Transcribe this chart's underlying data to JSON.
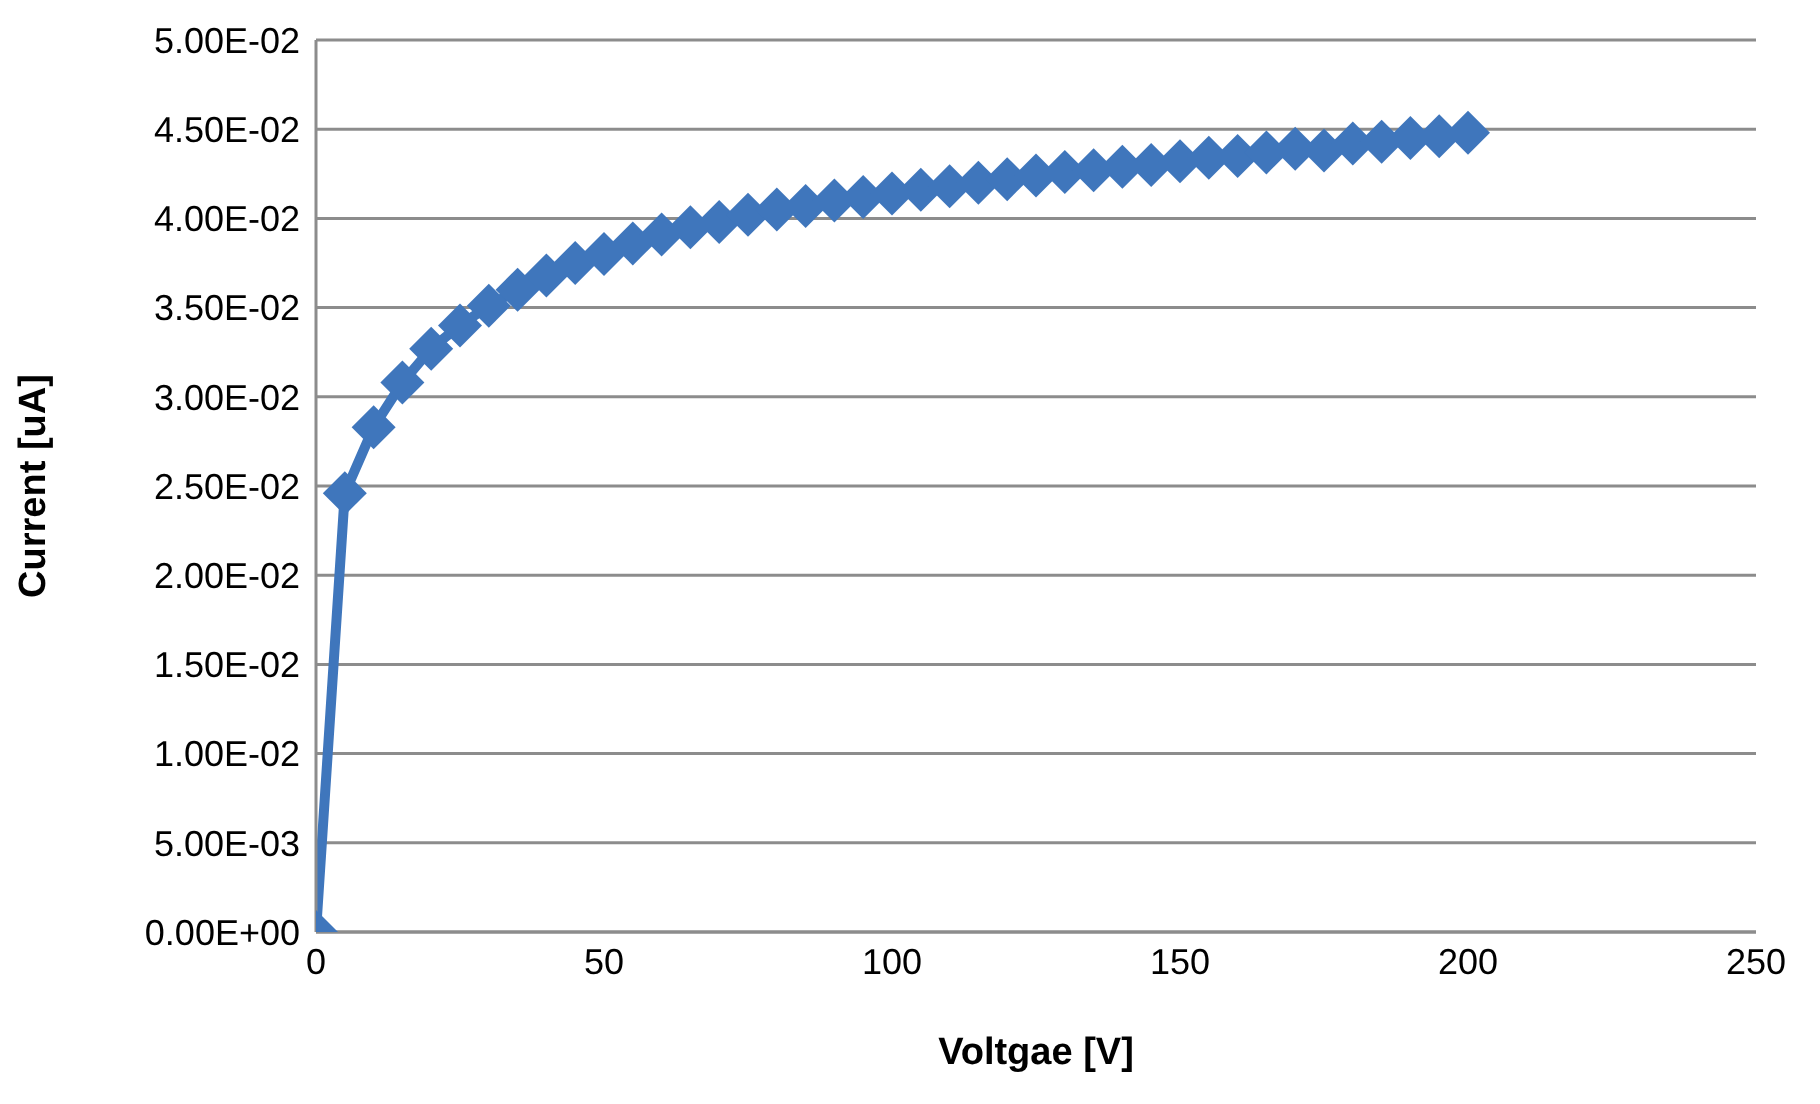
{
  "chart_data": {
    "type": "line",
    "xlabel": "Voltgae [V]",
    "ylabel": "Current [uA]",
    "x": [
      0,
      5,
      10,
      15,
      20,
      25,
      30,
      35,
      40,
      45,
      50,
      55,
      60,
      65,
      70,
      75,
      80,
      85,
      90,
      95,
      100,
      105,
      110,
      115,
      120,
      125,
      130,
      135,
      140,
      145,
      150,
      155,
      160,
      165,
      170,
      175,
      180,
      185,
      190,
      195,
      200
    ],
    "series": [
      {
        "color": "#3f76bc",
        "values": [
          0,
          0.0246,
          0.0283,
          0.0308,
          0.0327,
          0.034,
          0.0351,
          0.036,
          0.0368,
          0.0375,
          0.038,
          0.0386,
          0.0391,
          0.0395,
          0.0398,
          0.0402,
          0.0405,
          0.0407,
          0.041,
          0.0412,
          0.0414,
          0.0416,
          0.0418,
          0.042,
          0.0422,
          0.0424,
          0.0426,
          0.0427,
          0.0429,
          0.043,
          0.0432,
          0.0434,
          0.0435,
          0.0437,
          0.0439,
          0.0438,
          0.0442,
          0.0443,
          0.0445,
          0.0446,
          0.0448
        ]
      }
    ],
    "xlim": [
      0,
      250
    ],
    "xticks": [
      0,
      50,
      100,
      150,
      200,
      250
    ],
    "ylim": [
      0,
      0.05
    ],
    "yticks": [
      {
        "value": 0,
        "label": "0.00E+00"
      },
      {
        "value": 0.005,
        "label": "5.00E-03"
      },
      {
        "value": 0.01,
        "label": "1.00E-02"
      },
      {
        "value": 0.015,
        "label": "1.50E-02"
      },
      {
        "value": 0.02,
        "label": "2.00E-02"
      },
      {
        "value": 0.025,
        "label": "2.50E-02"
      },
      {
        "value": 0.03,
        "label": "3.00E-02"
      },
      {
        "value": 0.035,
        "label": "3.50E-02"
      },
      {
        "value": 0.04,
        "label": "4.00E-02"
      },
      {
        "value": 0.045,
        "label": "4.50E-02"
      },
      {
        "value": 0.05,
        "label": "5.00E-02"
      }
    ],
    "grid": "y",
    "marker": "diamond",
    "line_style": "solid",
    "legend": false
  }
}
